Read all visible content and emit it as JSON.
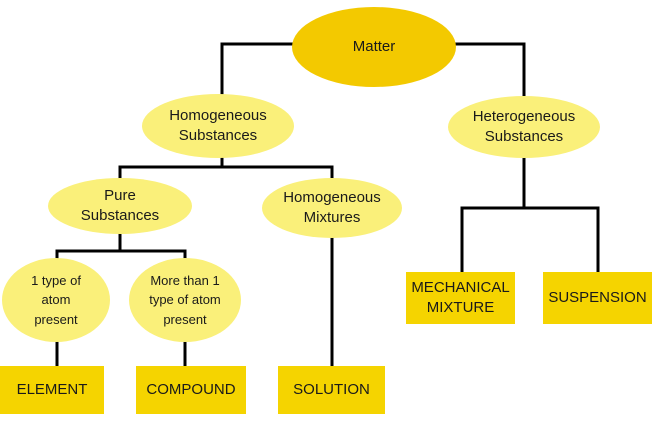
{
  "colors": {
    "root_fill": "#f3c900",
    "oval_fill": "#faf07a",
    "box_fill": "#f5d400",
    "line": "#000000"
  },
  "nodes": {
    "matter": "Matter",
    "homogeneous_substances": "Homogeneous Substances",
    "heterogeneous_substances": "Heterogeneous Substances",
    "pure_substances": "Pure Substances",
    "homogeneous_mixtures": "Homogeneous Mixtures",
    "one_type_atom": "1 type of atom present",
    "more_than_one_type_atom": "More than 1 type of atom present",
    "element": "ELEMENT",
    "compound": "COMPOUND",
    "solution": "SOLUTION",
    "mechanical_mixture": "MECHANICAL MIXTURE",
    "suspension": "SUSPENSION"
  }
}
